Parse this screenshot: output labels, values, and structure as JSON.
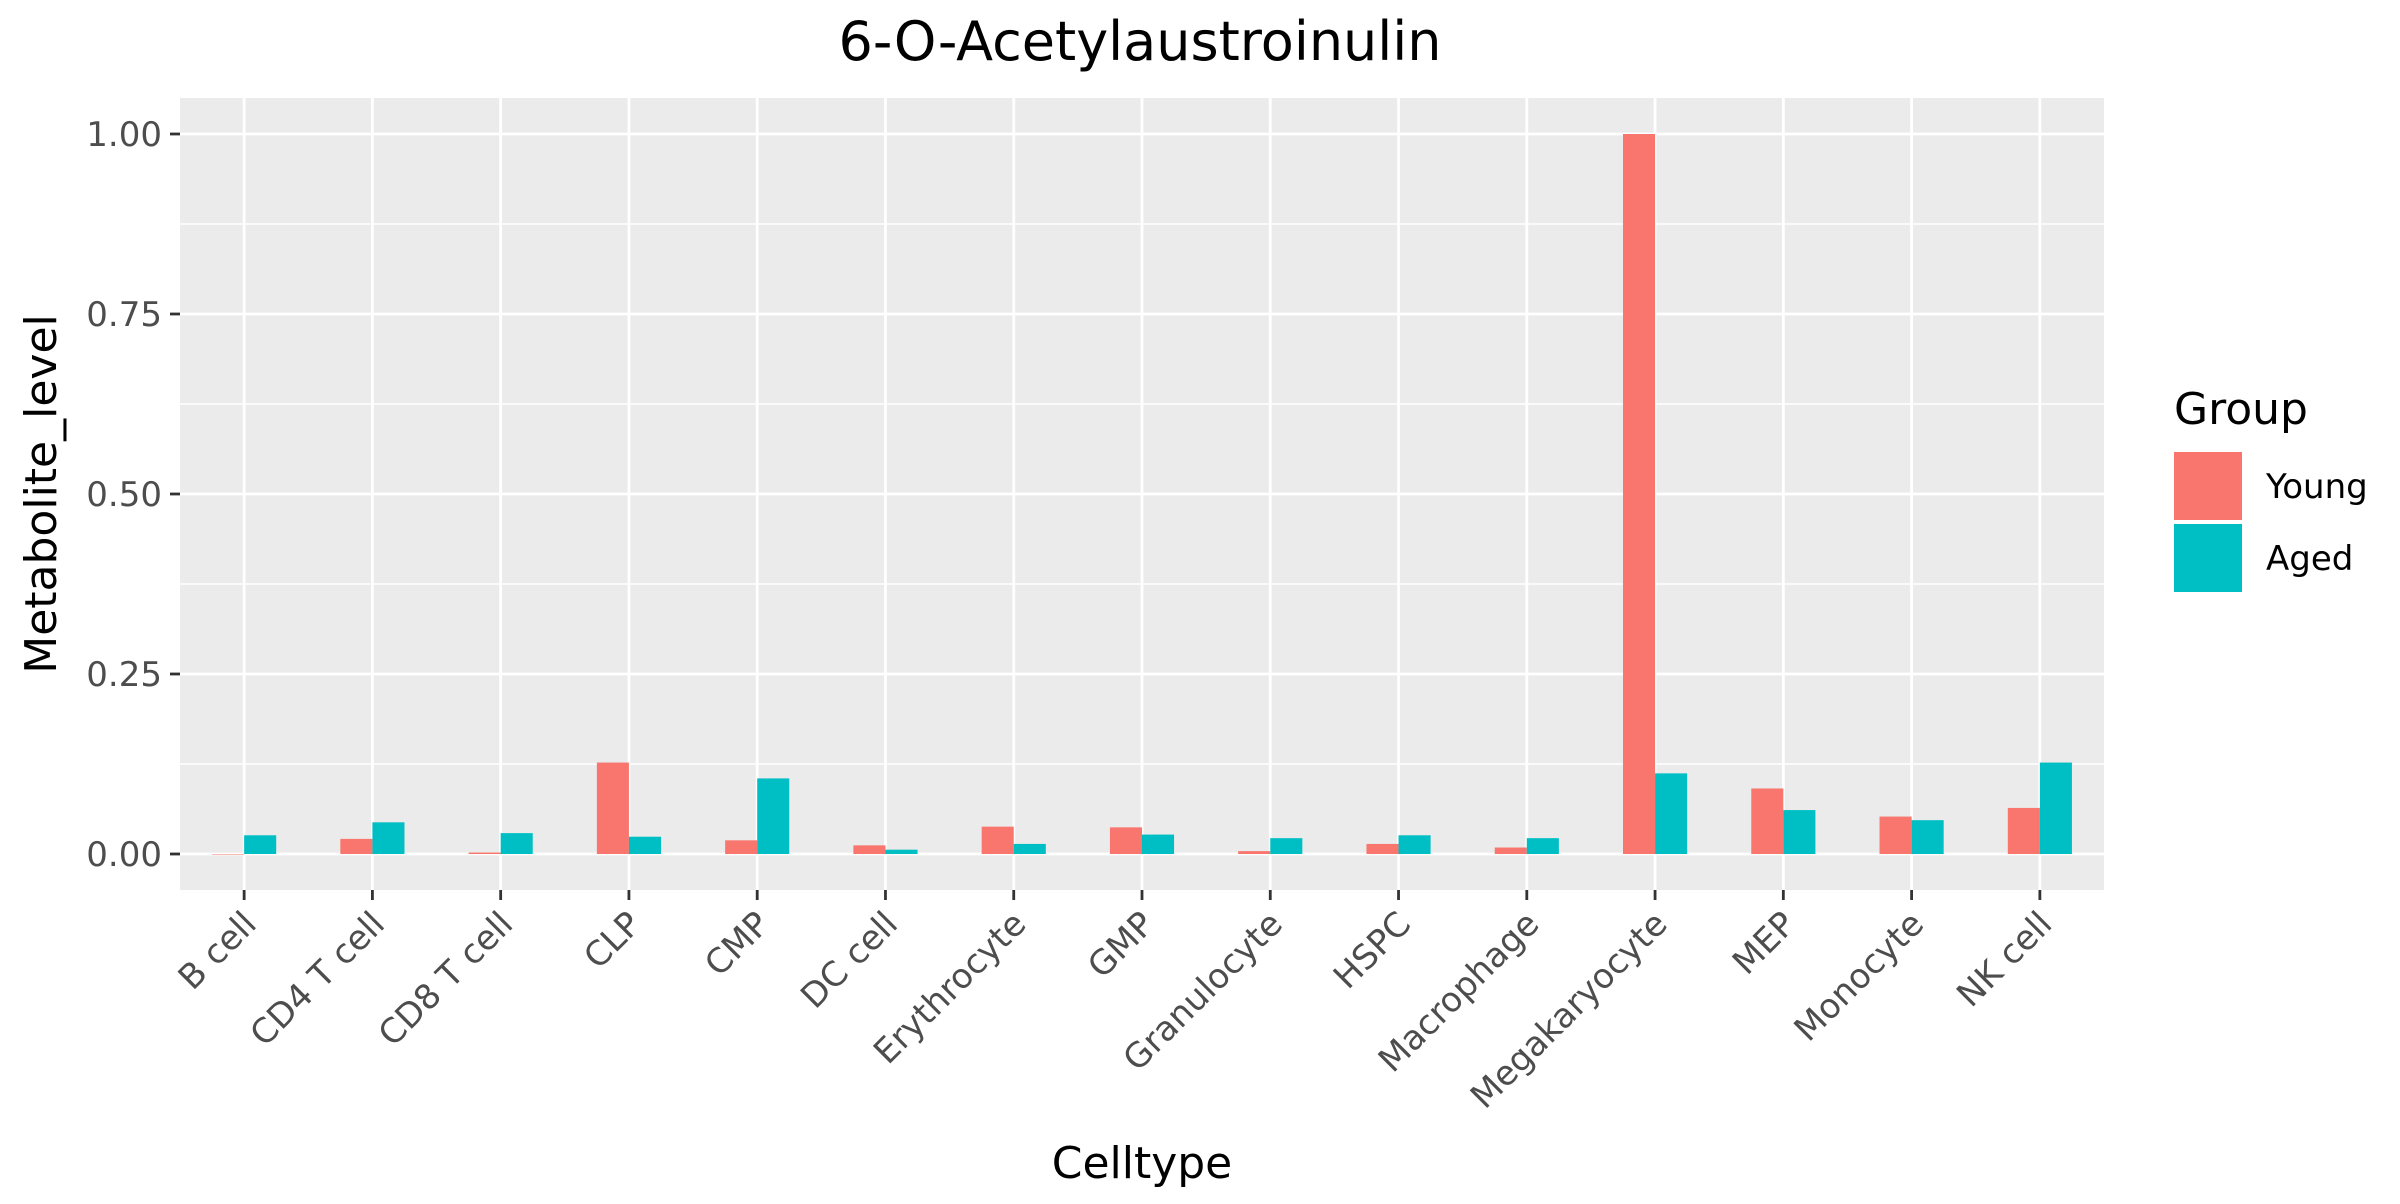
{
  "chart_data": {
    "type": "bar",
    "title": "6-O-Acetylaustroinulin",
    "xlabel": "Celltype",
    "ylabel": "Metabolite_level",
    "categories": [
      "B cell",
      "CD4 T cell",
      "CD8 T cell",
      "CLP",
      "CMP",
      "DC cell",
      "Erythrocyte",
      "GMP",
      "Granulocyte",
      "HSPC",
      "Macrophage",
      "Megakaryocyte",
      "MEP",
      "Monocyte",
      "NK cell"
    ],
    "series": [
      {
        "name": "Young",
        "color": "#F8766D",
        "values": [
          0.0,
          0.021,
          0.002,
          0.127,
          0.019,
          0.012,
          0.038,
          0.037,
          0.004,
          0.014,
          0.009,
          1.0,
          0.091,
          0.052,
          0.064
        ]
      },
      {
        "name": "Aged",
        "color": "#00BFC4",
        "values": [
          0.026,
          0.044,
          0.029,
          0.024,
          0.105,
          0.006,
          0.014,
          0.027,
          0.022,
          0.026,
          0.022,
          0.112,
          0.061,
          0.047,
          0.127
        ]
      }
    ],
    "ylim": [
      -0.05,
      1.05
    ],
    "yticks": [
      0.0,
      0.25,
      0.5,
      0.75,
      1.0
    ],
    "ytick_labels": [
      "0.00",
      "0.25",
      "0.50",
      "0.75",
      "1.00"
    ],
    "grid": true,
    "legend": {
      "title": "Group",
      "position": "right"
    }
  }
}
